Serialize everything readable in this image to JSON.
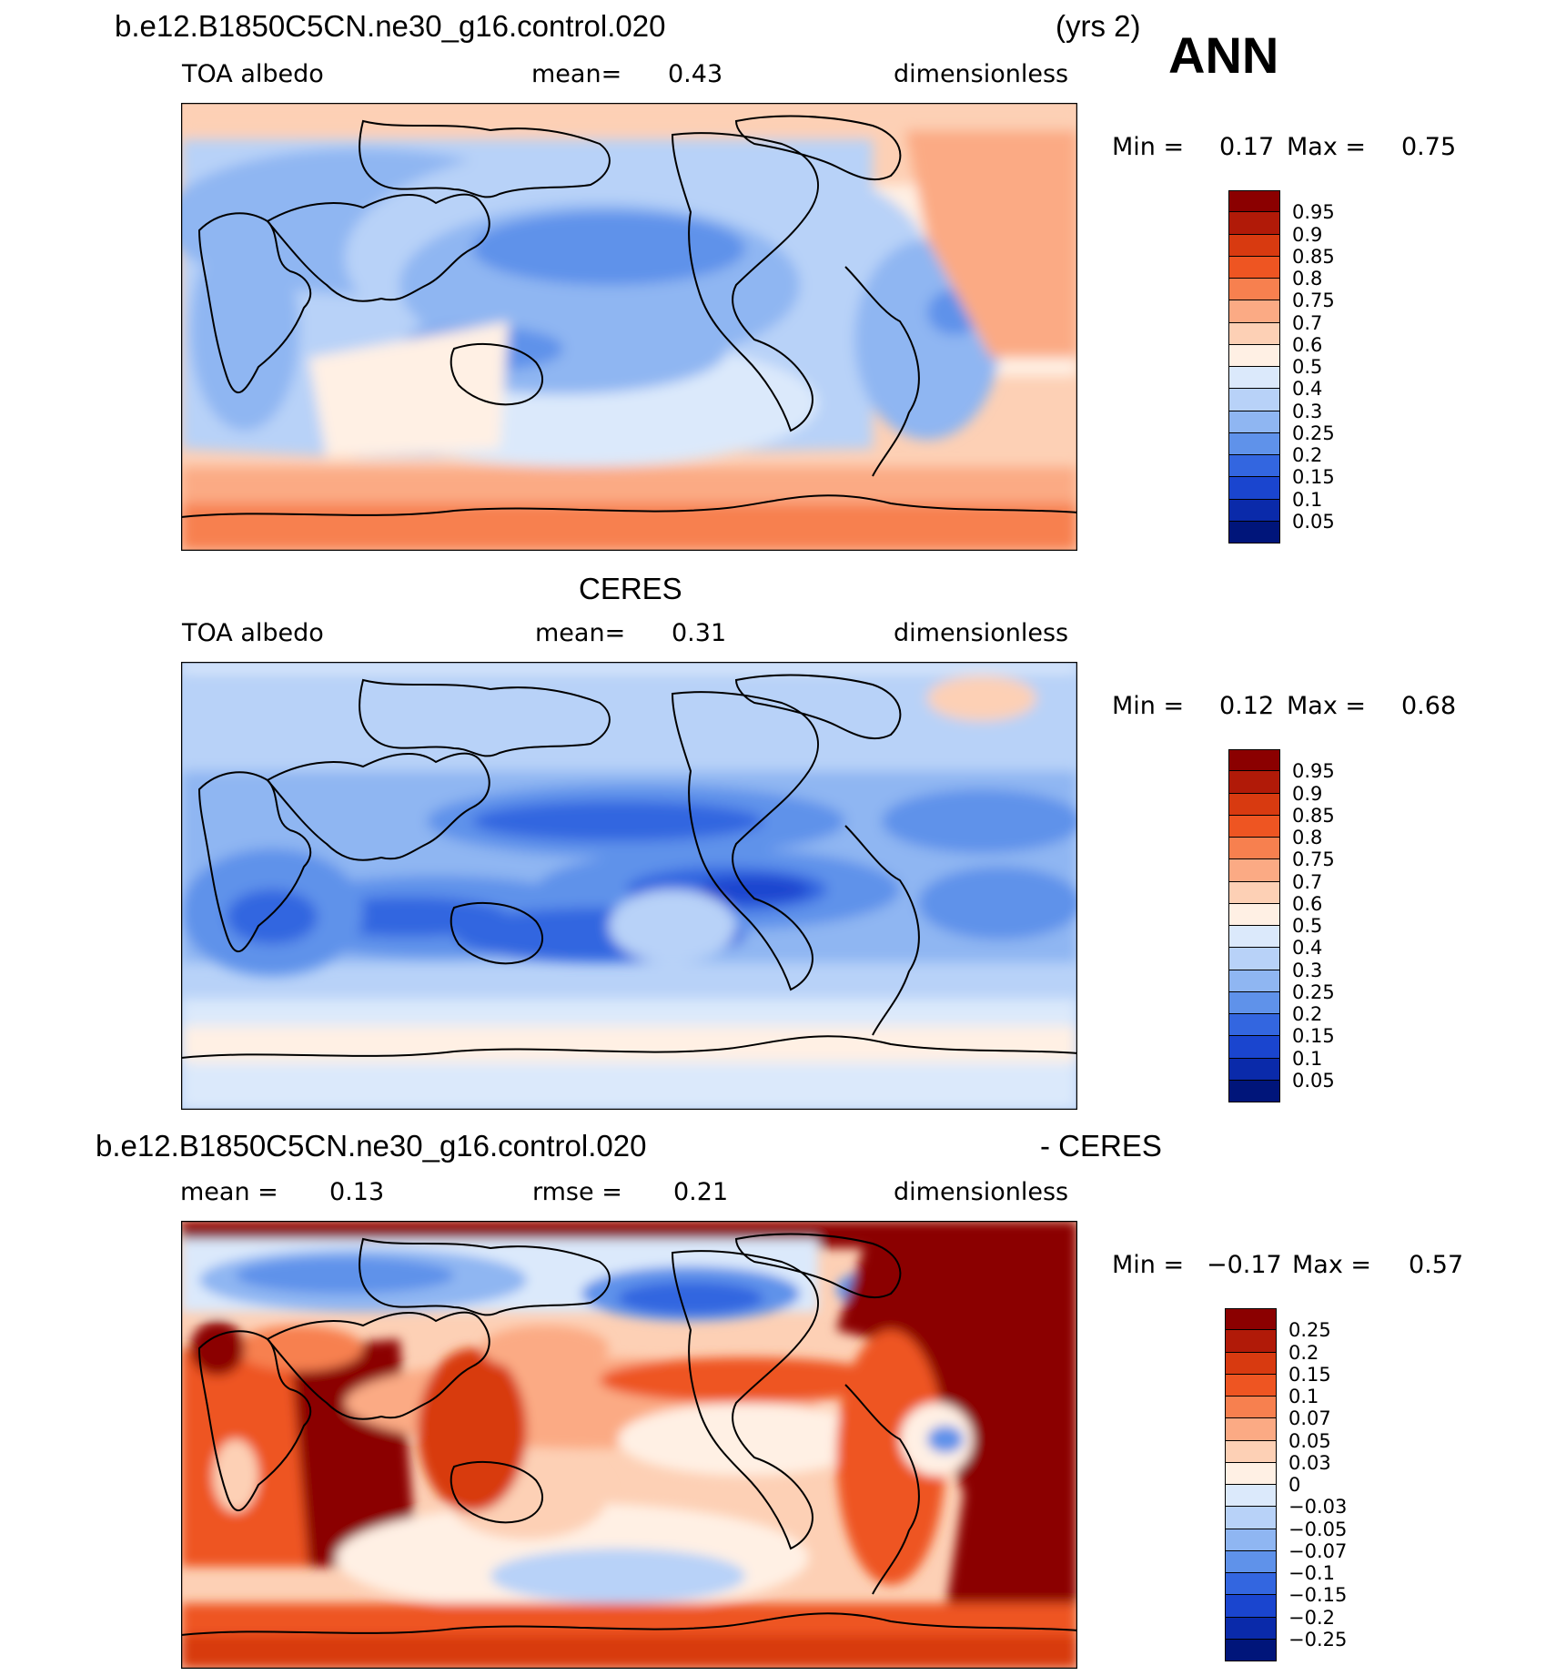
{
  "header": {
    "case_name": "b.e12.B1850C5CN.ne30_g16.control.020",
    "years": "(yrs 2)",
    "season": "ANN"
  },
  "panels": [
    {
      "id": "model",
      "title": "",
      "variable": "TOA albedo",
      "stat_label": "mean=",
      "stat_value": "0.43",
      "units": "dimensionless",
      "min_label": "Min =",
      "min_value": "0.17",
      "max_label": "Max =",
      "max_value": "0.75",
      "colorbar_labels": [
        "0.95",
        "0.9",
        "0.85",
        "0.8",
        "0.75",
        "0.7",
        "0.6",
        "0.5",
        "0.4",
        "0.3",
        "0.25",
        "0.2",
        "0.15",
        "0.1",
        "0.05"
      ]
    },
    {
      "id": "obs",
      "title": "CERES",
      "variable": "TOA albedo",
      "stat_label": "mean=",
      "stat_value": "0.31",
      "units": "dimensionless",
      "min_label": "Min =",
      "min_value": "0.12",
      "max_label": "Max =",
      "max_value": "0.68",
      "colorbar_labels": [
        "0.95",
        "0.9",
        "0.85",
        "0.8",
        "0.75",
        "0.7",
        "0.6",
        "0.5",
        "0.4",
        "0.3",
        "0.25",
        "0.2",
        "0.15",
        "0.1",
        "0.05"
      ]
    },
    {
      "id": "diff",
      "title_left": "b.e12.B1850C5CN.ne30_g16.control.020",
      "title_right": "- CERES",
      "mean_label": "mean =",
      "mean_value": "0.13",
      "rmse_label": "rmse =",
      "rmse_value": "0.21",
      "units": "dimensionless",
      "min_label": "Min =",
      "min_value": "−0.17",
      "max_label": "Max =",
      "max_value": "0.57",
      "colorbar_labels": [
        "0.25",
        "0.2",
        "0.15",
        "0.1",
        "0.07",
        "0.05",
        "0.03",
        "0",
        "−0.03",
        "−0.05",
        "−0.07",
        "−0.1",
        "−0.15",
        "−0.2",
        "−0.25"
      ]
    }
  ],
  "colors": {
    "abs_scale": [
      "#8b0000",
      "#b11a08",
      "#d83a10",
      "#ee5522",
      "#f7804f",
      "#fbaa84",
      "#fdd0b5",
      "#fff0e4",
      "#dbe9fb",
      "#b8d2f8",
      "#8fb6f2",
      "#5f92ea",
      "#3366e0",
      "#1a45cf",
      "#0a2aaa",
      "#00157a"
    ],
    "diff_scale": [
      "#8b0000",
      "#b11a08",
      "#d83a10",
      "#ee5522",
      "#f7804f",
      "#fbaa84",
      "#fdd0b5",
      "#fff0e4",
      "#dbe9fb",
      "#b8d2f8",
      "#8fb6f2",
      "#5f92ea",
      "#3366e0",
      "#1a45cf",
      "#0a2aaa",
      "#00157a"
    ]
  }
}
